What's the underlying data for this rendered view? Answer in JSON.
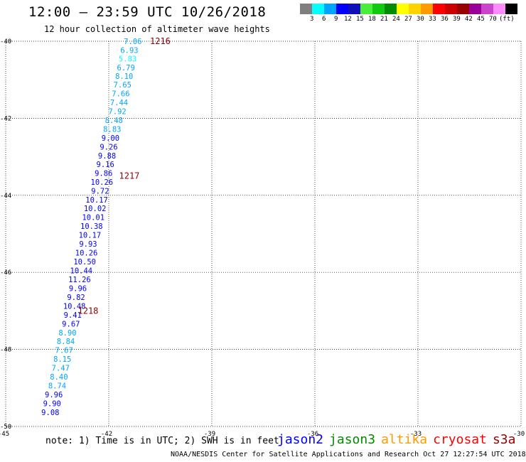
{
  "header": {
    "title": "12:00 – 23:59 UTC 10/26/2018",
    "subtitle": "12 hour collection of altimeter wave heights"
  },
  "legend": {
    "colors": [
      "#7f7f7f",
      "#00ffff",
      "#00a5ff",
      "#0000ff",
      "#1010b8",
      "#48ef3a",
      "#12c912",
      "#008c00",
      "#ffff00",
      "#ffd200",
      "#ff9a00",
      "#ff0000",
      "#cc0000",
      "#990000",
      "#990099",
      "#cc44cc",
      "#ff8cff",
      "#000000"
    ],
    "labels": [
      "3",
      "6",
      "9",
      "12",
      "15",
      "18",
      "21",
      "24",
      "27",
      "30",
      "33",
      "36",
      "39",
      "42",
      "45",
      "70",
      "(ft)"
    ]
  },
  "note": "note: 1) Time is in UTC; 2) SWH is in feet",
  "satellites": [
    {
      "name": "jason2",
      "color": "#0000ff"
    },
    {
      "name": "jason3",
      "color": "#008c00"
    },
    {
      "name": "altika",
      "color": "#ff9a00"
    },
    {
      "name": "cryosat",
      "color": "#ff0000"
    },
    {
      "name": "s3a",
      "color": "#990000"
    }
  ],
  "footer": "NOAA/NESDIS Center for Satellite Applications and Research    Oct 27 12:27:54 UTC 2018",
  "chart_data": {
    "type": "scatter",
    "xlim": [
      -45,
      -30
    ],
    "ylim": [
      -50,
      -40
    ],
    "x_ticks": [
      "-45",
      "-42",
      "-39",
      "-36",
      "-33",
      "-30"
    ],
    "y_ticks": [
      "-40",
      "-42",
      "-44",
      "-46",
      "-48",
      "-50"
    ],
    "grid": true,
    "units": "ft",
    "time_labels": [
      {
        "text": "1216",
        "x": -40.8,
        "y": -40.0
      },
      {
        "text": "1217",
        "x": -41.7,
        "y": -43.5
      },
      {
        "text": "1218",
        "x": -42.9,
        "y": -47.0
      }
    ],
    "points": [
      {
        "x": -41.3,
        "y": -40.0,
        "v": "7.06"
      },
      {
        "x": -41.4,
        "y": -40.23,
        "v": "6.93"
      },
      {
        "x": -41.45,
        "y": -40.45,
        "v": "5.83"
      },
      {
        "x": -41.5,
        "y": -40.68,
        "v": "6.79"
      },
      {
        "x": -41.55,
        "y": -40.9,
        "v": "8.10"
      },
      {
        "x": -41.6,
        "y": -41.13,
        "v": "7.65"
      },
      {
        "x": -41.65,
        "y": -41.36,
        "v": "7.66"
      },
      {
        "x": -41.7,
        "y": -41.59,
        "v": "7.44"
      },
      {
        "x": -41.75,
        "y": -41.82,
        "v": "7.92"
      },
      {
        "x": -41.85,
        "y": -42.05,
        "v": "8.48"
      },
      {
        "x": -41.9,
        "y": -42.28,
        "v": "8.83"
      },
      {
        "x": -41.95,
        "y": -42.51,
        "v": "9.00"
      },
      {
        "x": -42.0,
        "y": -42.74,
        "v": "9.26"
      },
      {
        "x": -42.05,
        "y": -42.97,
        "v": "9.88"
      },
      {
        "x": -42.1,
        "y": -43.19,
        "v": "9.16"
      },
      {
        "x": -42.15,
        "y": -43.42,
        "v": "9.86"
      },
      {
        "x": -42.2,
        "y": -43.65,
        "v": "10.26"
      },
      {
        "x": -42.25,
        "y": -43.88,
        "v": "9.72"
      },
      {
        "x": -42.35,
        "y": -44.11,
        "v": "10.17"
      },
      {
        "x": -42.4,
        "y": -44.34,
        "v": "10.02"
      },
      {
        "x": -42.45,
        "y": -44.57,
        "v": "10.01"
      },
      {
        "x": -42.5,
        "y": -44.8,
        "v": "10.38"
      },
      {
        "x": -42.55,
        "y": -45.03,
        "v": "10.17"
      },
      {
        "x": -42.6,
        "y": -45.26,
        "v": "9.93"
      },
      {
        "x": -42.65,
        "y": -45.49,
        "v": "10.26"
      },
      {
        "x": -42.7,
        "y": -45.72,
        "v": "10.50"
      },
      {
        "x": -42.8,
        "y": -45.95,
        "v": "10.44"
      },
      {
        "x": -42.85,
        "y": -46.18,
        "v": "11.26"
      },
      {
        "x": -42.9,
        "y": -46.41,
        "v": "9.96"
      },
      {
        "x": -42.95,
        "y": -46.64,
        "v": "9.82"
      },
      {
        "x": -43.0,
        "y": -46.87,
        "v": "10.48"
      },
      {
        "x": -43.05,
        "y": -47.1,
        "v": "9.41"
      },
      {
        "x": -43.1,
        "y": -47.33,
        "v": "9.67"
      },
      {
        "x": -43.2,
        "y": -47.56,
        "v": "8.90"
      },
      {
        "x": -43.25,
        "y": -47.79,
        "v": "8.84"
      },
      {
        "x": -43.3,
        "y": -48.02,
        "v": "7.67"
      },
      {
        "x": -43.35,
        "y": -48.25,
        "v": "8.15"
      },
      {
        "x": -43.4,
        "y": -48.48,
        "v": "7.47"
      },
      {
        "x": -43.45,
        "y": -48.71,
        "v": "8.40"
      },
      {
        "x": -43.5,
        "y": -48.94,
        "v": "8.74"
      },
      {
        "x": -43.6,
        "y": -49.17,
        "v": "9.96"
      },
      {
        "x": -43.65,
        "y": -49.4,
        "v": "9.90"
      },
      {
        "x": -43.7,
        "y": -49.63,
        "v": "9.08"
      }
    ]
  }
}
